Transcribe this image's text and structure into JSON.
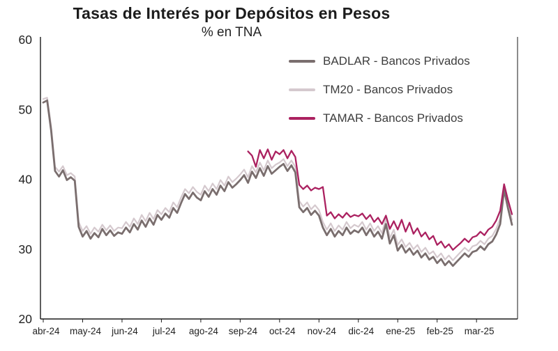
{
  "chart_data": {
    "type": "line",
    "title": "Tasas de Interés por Depósitos en Pesos",
    "subtitle": "% en TNA",
    "x_tick_labels": [
      "abr-24",
      "may-24",
      "jun-24",
      "jul-24",
      "ago-24",
      "sep-24",
      "oct-24",
      "nov-24",
      "dic-24",
      "ene-25",
      "feb-25",
      "mar-25"
    ],
    "ylim": [
      20,
      60
    ],
    "yticks": [
      20,
      30,
      40,
      50,
      60
    ],
    "grid": false,
    "legend_position": "top-right-inside",
    "axis_color": "#1a1a1a",
    "tick_label_color": "#222222",
    "series": [
      {
        "name": "BADLAR - Bancos Privados",
        "color": "#7a6e6e",
        "line_width": 2.8,
        "start_index": 0,
        "values": [
          51.0,
          51.3,
          47.0,
          41.2,
          40.4,
          41.3,
          39.9,
          40.3,
          39.8,
          33.2,
          31.8,
          32.6,
          31.5,
          32.3,
          31.7,
          32.9,
          32.0,
          32.7,
          31.9,
          32.4,
          32.2,
          33.1,
          32.4,
          33.6,
          32.8,
          34.1,
          33.2,
          34.4,
          33.5,
          34.9,
          34.2,
          35.1,
          34.5,
          35.9,
          35.2,
          36.6,
          37.9,
          37.2,
          38.1,
          37.4,
          37.0,
          38.3,
          37.5,
          38.6,
          37.8,
          39.1,
          38.3,
          39.6,
          38.8,
          39.3,
          39.9,
          40.6,
          39.5,
          41.1,
          40.2,
          41.6,
          40.5,
          41.9,
          40.8,
          41.3,
          41.8,
          42.2,
          41.2,
          42.0,
          41.0,
          36.0,
          35.3,
          35.9,
          34.9,
          35.5,
          34.8,
          33.1,
          32.0,
          32.9,
          31.8,
          32.6,
          32.0,
          33.1,
          32.2,
          32.7,
          32.4,
          33.1,
          32.0,
          32.9,
          31.8,
          32.5,
          31.5,
          33.6,
          30.8,
          32.0,
          29.8,
          30.6,
          29.5,
          30.1,
          29.2,
          29.8,
          28.8,
          29.4,
          28.5,
          28.9,
          28.0,
          28.6,
          27.7,
          28.3,
          27.6,
          28.2,
          28.8,
          29.4,
          28.9,
          29.6,
          29.8,
          30.4,
          29.9,
          30.7,
          31.1,
          32.1,
          33.6,
          38.5,
          35.8,
          33.5
        ]
      },
      {
        "name": "TM20 - Bancos Privados",
        "color": "#d5c9ce",
        "line_width": 2.2,
        "start_index": 0,
        "values": [
          51.5,
          51.7,
          47.6,
          41.8,
          41.1,
          41.9,
          40.6,
          40.9,
          40.4,
          33.9,
          32.6,
          33.3,
          32.2,
          33.1,
          32.5,
          33.5,
          32.7,
          33.4,
          32.6,
          33.1,
          33.0,
          33.9,
          33.2,
          34.4,
          33.6,
          34.9,
          34.0,
          35.2,
          34.3,
          35.6,
          35.0,
          35.9,
          35.3,
          36.7,
          36.0,
          37.4,
          38.6,
          38.0,
          38.9,
          38.2,
          37.8,
          39.1,
          38.3,
          39.4,
          38.6,
          39.9,
          39.1,
          40.4,
          39.6,
          40.1,
          40.7,
          41.4,
          40.3,
          41.9,
          41.0,
          42.4,
          41.3,
          42.7,
          41.6,
          42.1,
          42.4,
          42.9,
          41.9,
          42.7,
          41.8,
          36.9,
          36.1,
          36.7,
          35.7,
          36.3,
          35.6,
          33.9,
          32.8,
          33.7,
          32.6,
          33.4,
          32.8,
          33.9,
          33.0,
          33.5,
          33.2,
          33.9,
          32.8,
          33.7,
          32.6,
          33.3,
          32.3,
          34.4,
          31.6,
          32.8,
          30.6,
          31.4,
          30.3,
          30.9,
          30.0,
          30.6,
          29.6,
          30.2,
          29.3,
          29.7,
          28.8,
          29.4,
          28.5,
          29.1,
          28.4,
          29.0,
          29.6,
          30.2,
          29.7,
          30.4,
          30.6,
          31.2,
          30.7,
          31.5,
          31.9,
          32.9,
          34.4,
          38.9,
          36.4,
          34.2
        ]
      },
      {
        "name": "TAMAR - Bancos Privados",
        "color": "#ab2160",
        "line_width": 2.3,
        "start_index": 52,
        "values": [
          44.0,
          43.4,
          41.8,
          44.2,
          43.0,
          44.3,
          42.8,
          44.0,
          43.6,
          44.2,
          43.0,
          44.1,
          43.2,
          39.2,
          38.6,
          39.1,
          38.4,
          38.8,
          38.6,
          38.9,
          34.8,
          35.3,
          34.4,
          35.0,
          34.5,
          35.2,
          34.6,
          34.9,
          34.7,
          35.1,
          34.3,
          34.9,
          33.9,
          34.5,
          33.6,
          34.8,
          32.9,
          34.0,
          32.8,
          34.2,
          32.5,
          33.8,
          32.2,
          33.0,
          31.8,
          32.4,
          31.4,
          31.9,
          30.6,
          31.1,
          30.2,
          30.7,
          29.9,
          30.4,
          30.9,
          31.5,
          31.0,
          31.7,
          31.9,
          32.5,
          32.0,
          32.8,
          33.2,
          34.1,
          35.5,
          39.3,
          37.0,
          35.0
        ]
      }
    ]
  }
}
